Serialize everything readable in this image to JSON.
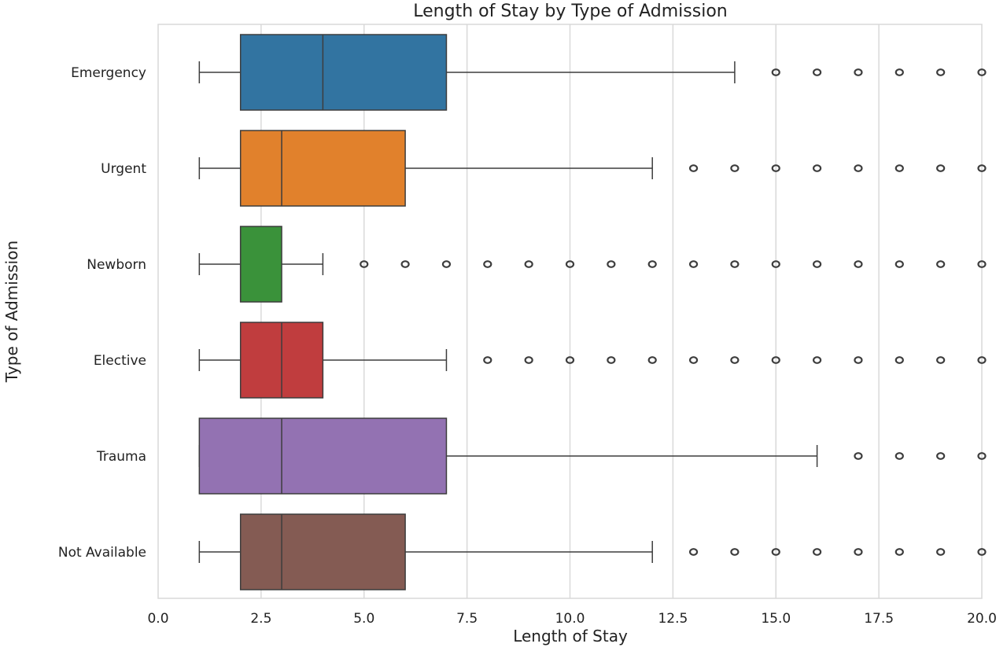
{
  "chart_data": {
    "type": "boxplot",
    "orientation": "horizontal",
    "title": "Length of Stay by Type of Admission",
    "xlabel": "Length of Stay",
    "ylabel": "Type of Admission",
    "xlim": [
      0,
      20
    ],
    "xticks": [
      "0.0",
      "2.5",
      "5.0",
      "7.5",
      "10.0",
      "12.5",
      "15.0",
      "17.5",
      "20.0"
    ],
    "grid": true,
    "legend": "none",
    "categories": [
      "Emergency",
      "Urgent",
      "Newborn",
      "Elective",
      "Trauma",
      "Not Available"
    ],
    "series": [
      {
        "category": "Emergency",
        "color": "#3274a1",
        "whisker_low": 1,
        "q1": 2,
        "median": 4,
        "q3": 7,
        "whisker_high": 14,
        "outliers": [
          15,
          16,
          17,
          18,
          19,
          20
        ]
      },
      {
        "category": "Urgent",
        "color": "#e1812c",
        "whisker_low": 1,
        "q1": 2,
        "median": 3,
        "q3": 6,
        "whisker_high": 12,
        "outliers": [
          13,
          14,
          15,
          16,
          17,
          18,
          19,
          20
        ]
      },
      {
        "category": "Newborn",
        "color": "#3a923a",
        "whisker_low": 1,
        "q1": 2,
        "median": 2,
        "q3": 3,
        "whisker_high": 4,
        "outliers": [
          5,
          6,
          7,
          8,
          9,
          10,
          11,
          12,
          13,
          14,
          15,
          16,
          17,
          18,
          19,
          20
        ]
      },
      {
        "category": "Elective",
        "color": "#c03d3e",
        "whisker_low": 1,
        "q1": 2,
        "median": 3,
        "q3": 4,
        "whisker_high": 7,
        "outliers": [
          8,
          9,
          10,
          11,
          12,
          13,
          14,
          15,
          16,
          17,
          18,
          19,
          20
        ]
      },
      {
        "category": "Trauma",
        "color": "#9372b2",
        "whisker_low": 1,
        "q1": 1,
        "median": 3,
        "q3": 7,
        "whisker_high": 16,
        "outliers": [
          17,
          18,
          19,
          20
        ]
      },
      {
        "category": "Not Available",
        "color": "#845b53",
        "whisker_low": 1,
        "q1": 2,
        "median": 3,
        "q3": 6,
        "whisker_high": 12,
        "outliers": [
          13,
          14,
          15,
          16,
          17,
          18,
          19,
          20
        ]
      }
    ]
  }
}
